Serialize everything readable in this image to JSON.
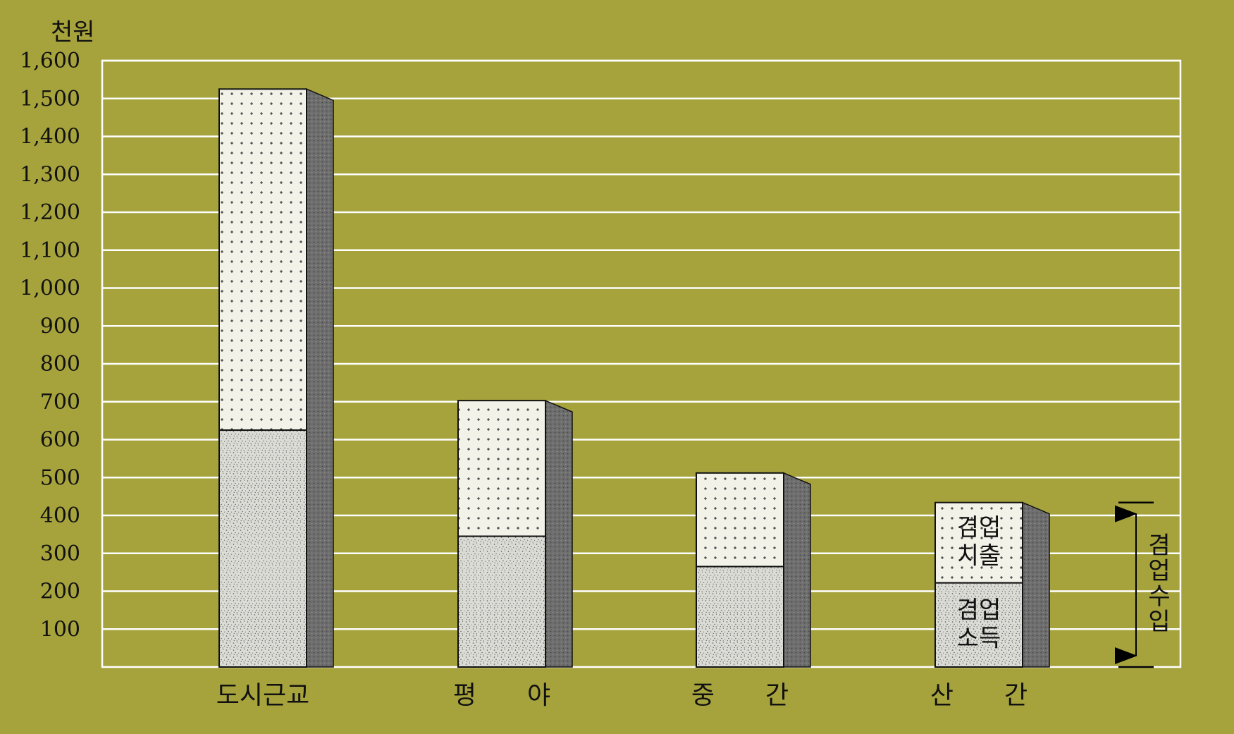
{
  "chart_data": {
    "type": "bar",
    "stacked": true,
    "background_color": "#a6a33d",
    "unit_label": "천원",
    "categories": [
      "도시근교",
      "평 야",
      "중 간",
      "산 간"
    ],
    "series": [
      {
        "name": "겸업 소득",
        "values": [
          625,
          345,
          265,
          222
        ],
        "fill": "#dcdcd6"
      },
      {
        "name": "겸업 치출",
        "values": [
          900,
          358,
          247,
          212
        ],
        "fill": "#f3f2e8"
      }
    ],
    "ylim": [
      0,
      1600
    ],
    "yticks": [
      100,
      200,
      300,
      400,
      500,
      600,
      700,
      800,
      900,
      1000,
      1100,
      1200,
      1300,
      1400,
      1500,
      1600
    ],
    "ytick_labels": [
      "100",
      "200",
      "300",
      "400",
      "500",
      "600",
      "700",
      "800",
      "900",
      "1,000",
      "1,100",
      "1,200",
      "1,300",
      "1,400",
      "1,500",
      "1,600"
    ],
    "grid": true,
    "grid_color": "#ffffff",
    "inline_labels": {
      "expense": [
        "겸업",
        "치출"
      ],
      "income": [
        "겸업",
        "소득"
      ]
    },
    "bracket_label": [
      "겸",
      "업",
      "수",
      "입"
    ]
  }
}
